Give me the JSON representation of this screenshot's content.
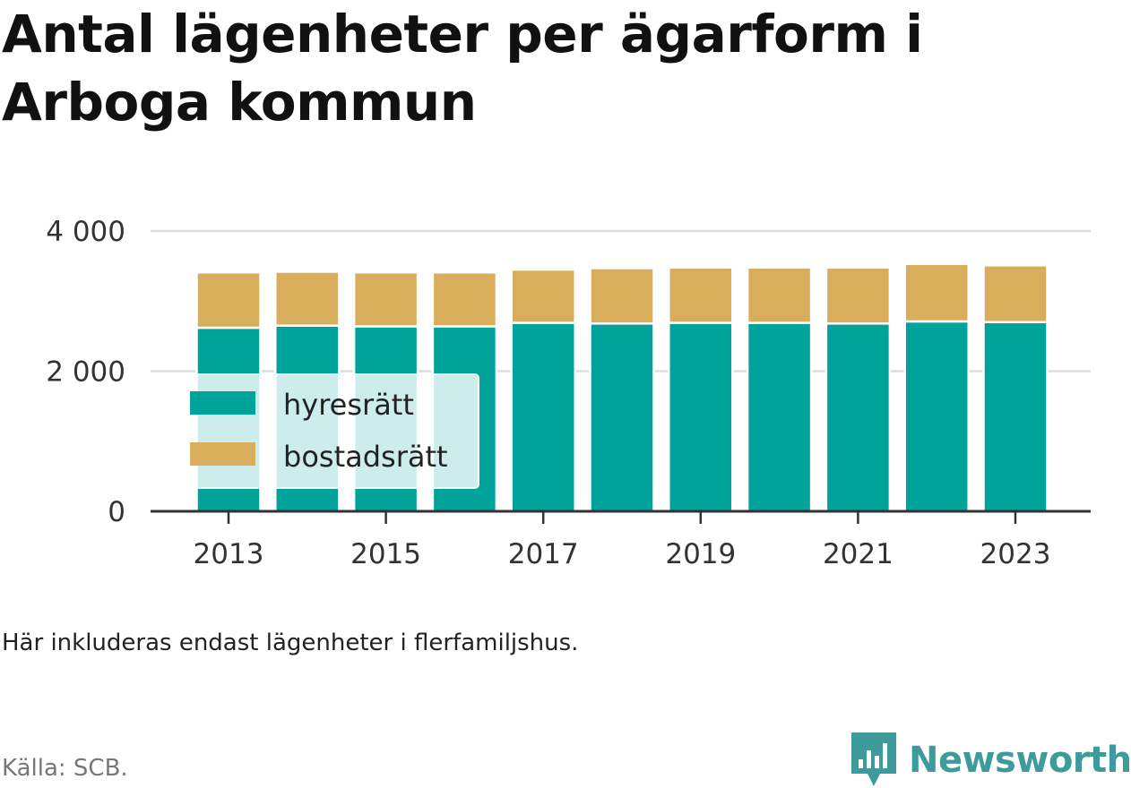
{
  "title": "Antal lägenheter per ägarform i Arboga kommun",
  "note": "Här inkluderas endast lägenheter i flerfamiljshus.",
  "source": "Källa: SCB.",
  "brand": "Newsworthy",
  "colors": {
    "hyresratt": "#00a39a",
    "bostadsratt": "#d8ae5c",
    "brand": "#3e9b9b"
  },
  "chart_data": {
    "type": "bar",
    "stacked": true,
    "categories": [
      "2013",
      "2014",
      "2015",
      "2016",
      "2017",
      "2018",
      "2019",
      "2020",
      "2021",
      "2022",
      "2023"
    ],
    "x_tick_labels": [
      "2013",
      "2015",
      "2017",
      "2019",
      "2021",
      "2023"
    ],
    "series": [
      {
        "name": "hyresrätt",
        "color": "#00a39a",
        "values": [
          2620,
          2650,
          2640,
          2640,
          2690,
          2680,
          2690,
          2690,
          2680,
          2710,
          2700
        ]
      },
      {
        "name": "bostadsrätt",
        "color": "#d8ae5c",
        "values": [
          790,
          770,
          770,
          770,
          760,
          790,
          790,
          790,
          800,
          820,
          810
        ]
      }
    ],
    "y_ticks": [
      "0",
      "2 000",
      "4 000"
    ],
    "y_tick_values": [
      0,
      2000,
      4000
    ],
    "ylim": [
      0,
      4000
    ],
    "grid": true,
    "legend_position": "bottom-left"
  }
}
